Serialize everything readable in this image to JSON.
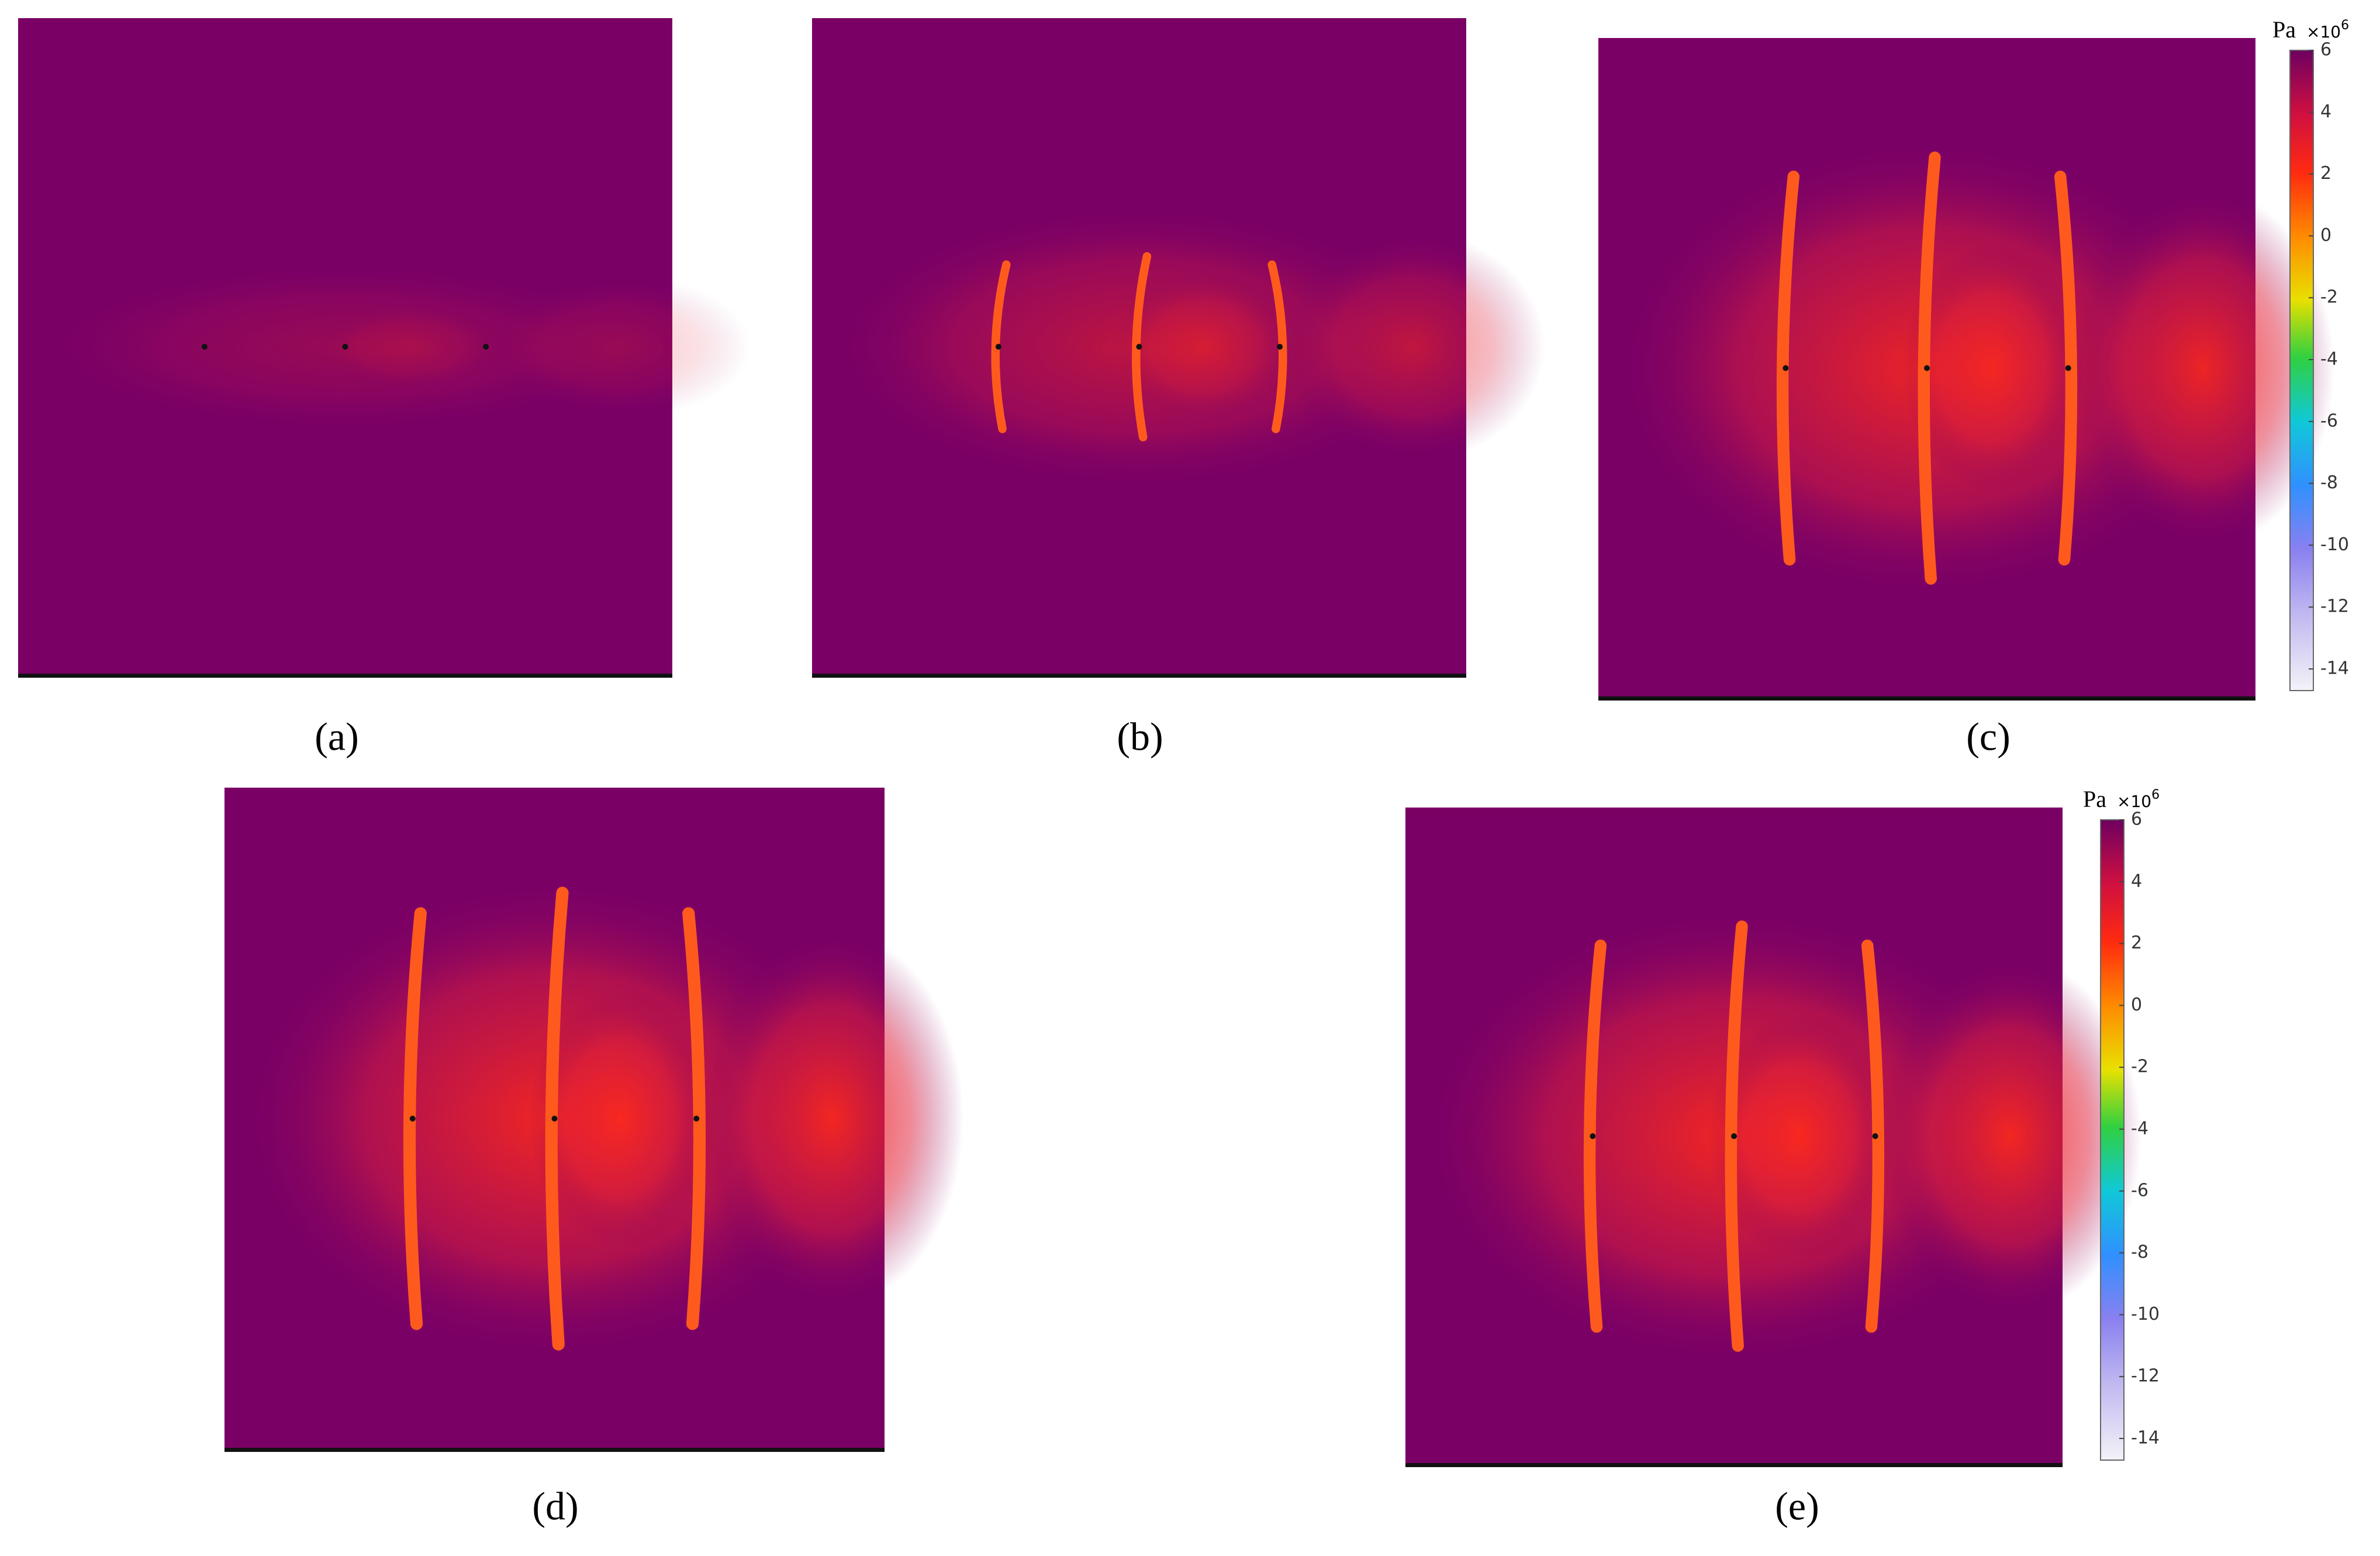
{
  "panels": [
    {
      "caption": "(a)"
    },
    {
      "caption": "(b)"
    },
    {
      "caption": "(c)"
    },
    {
      "caption": "(d)"
    },
    {
      "caption": "(e)"
    }
  ],
  "colorbars": [
    {
      "unit": "Pa",
      "multiplier": "×10",
      "exponent": "6",
      "lim": [
        -14.7,
        6
      ],
      "ticks": [
        6,
        4,
        2,
        0,
        -2,
        -4,
        -6,
        -8,
        -10,
        -12,
        -14
      ]
    },
    {
      "unit": "Pa",
      "multiplier": "×10",
      "exponent": "6",
      "lim": [
        -14.7,
        6
      ],
      "ticks": [
        6,
        4,
        2,
        0,
        -2,
        -4,
        -6,
        -8,
        -10,
        -12,
        -14
      ]
    }
  ]
}
